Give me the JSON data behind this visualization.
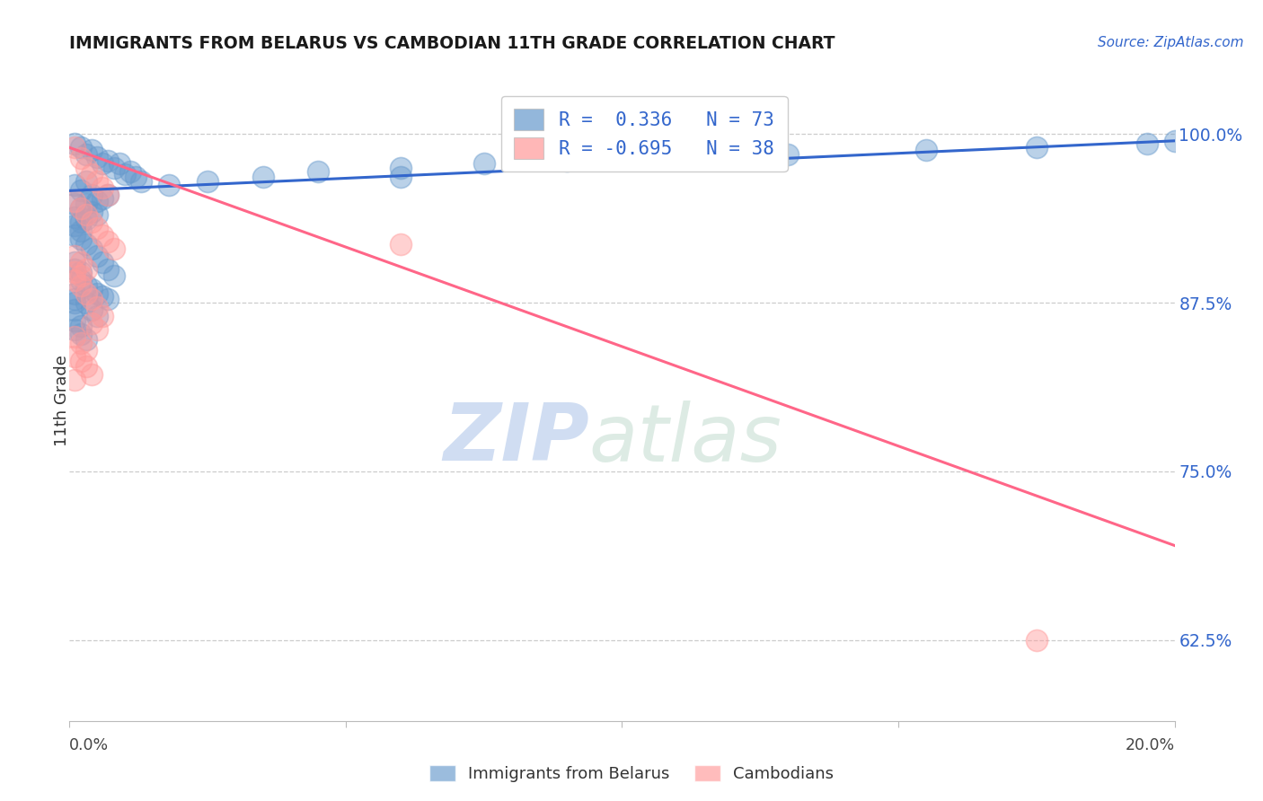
{
  "title": "IMMIGRANTS FROM BELARUS VS CAMBODIAN 11TH GRADE CORRELATION CHART",
  "source": "Source: ZipAtlas.com",
  "ylabel": "11th Grade",
  "ytick_labels": [
    "100.0%",
    "87.5%",
    "75.0%",
    "62.5%"
  ],
  "ytick_values": [
    1.0,
    0.875,
    0.75,
    0.625
  ],
  "xmin": 0.0,
  "xmax": 0.2,
  "ymin": 0.565,
  "ymax": 1.04,
  "blue_R": 0.336,
  "blue_N": 73,
  "pink_R": -0.695,
  "pink_N": 38,
  "blue_color": "#6699CC",
  "pink_color": "#FF9999",
  "blue_line_color": "#3366CC",
  "pink_line_color": "#FF6688",
  "watermark_zip": "ZIP",
  "watermark_atlas": "atlas",
  "legend_label_blue": "Immigrants from Belarus",
  "legend_label_pink": "Cambodians",
  "blue_scatter": [
    [
      0.001,
      0.993
    ],
    [
      0.002,
      0.99
    ],
    [
      0.003,
      0.985
    ],
    [
      0.004,
      0.988
    ],
    [
      0.005,
      0.983
    ],
    [
      0.006,
      0.978
    ],
    [
      0.007,
      0.98
    ],
    [
      0.008,
      0.975
    ],
    [
      0.009,
      0.978
    ],
    [
      0.01,
      0.97
    ],
    [
      0.011,
      0.972
    ],
    [
      0.012,
      0.968
    ],
    [
      0.013,
      0.965
    ],
    [
      0.001,
      0.962
    ],
    [
      0.002,
      0.958
    ],
    [
      0.003,
      0.965
    ],
    [
      0.004,
      0.955
    ],
    [
      0.005,
      0.95
    ],
    [
      0.006,
      0.952
    ],
    [
      0.007,
      0.955
    ],
    [
      0.001,
      0.948
    ],
    [
      0.002,
      0.945
    ],
    [
      0.003,
      0.948
    ],
    [
      0.004,
      0.942
    ],
    [
      0.005,
      0.94
    ],
    [
      0.001,
      0.938
    ],
    [
      0.002,
      0.935
    ],
    [
      0.003,
      0.937
    ],
    [
      0.001,
      0.932
    ],
    [
      0.002,
      0.928
    ],
    [
      0.001,
      0.925
    ],
    [
      0.002,
      0.922
    ],
    [
      0.003,
      0.918
    ],
    [
      0.004,
      0.915
    ],
    [
      0.005,
      0.91
    ],
    [
      0.006,
      0.905
    ],
    [
      0.007,
      0.9
    ],
    [
      0.008,
      0.895
    ],
    [
      0.001,
      0.905
    ],
    [
      0.001,
      0.9
    ],
    [
      0.002,
      0.898
    ],
    [
      0.002,
      0.892
    ],
    [
      0.003,
      0.888
    ],
    [
      0.004,
      0.885
    ],
    [
      0.005,
      0.882
    ],
    [
      0.006,
      0.88
    ],
    [
      0.007,
      0.878
    ],
    [
      0.003,
      0.875
    ],
    [
      0.004,
      0.87
    ],
    [
      0.005,
      0.865
    ],
    [
      0.001,
      0.862
    ],
    [
      0.002,
      0.858
    ],
    [
      0.001,
      0.855
    ],
    [
      0.002,
      0.852
    ],
    [
      0.003,
      0.848
    ],
    [
      0.018,
      0.962
    ],
    [
      0.025,
      0.965
    ],
    [
      0.035,
      0.968
    ],
    [
      0.045,
      0.972
    ],
    [
      0.06,
      0.975
    ],
    [
      0.075,
      0.978
    ],
    [
      0.09,
      0.98
    ],
    [
      0.11,
      0.982
    ],
    [
      0.13,
      0.985
    ],
    [
      0.155,
      0.988
    ],
    [
      0.175,
      0.99
    ],
    [
      0.195,
      0.993
    ],
    [
      0.001,
      0.882
    ],
    [
      0.001,
      0.878
    ],
    [
      0.001,
      0.875
    ],
    [
      0.06,
      0.968
    ],
    [
      0.2,
      0.995
    ],
    [
      0.001,
      0.87
    ]
  ],
  "pink_scatter": [
    [
      0.001,
      0.99
    ],
    [
      0.002,
      0.982
    ],
    [
      0.003,
      0.975
    ],
    [
      0.004,
      0.97
    ],
    [
      0.005,
      0.965
    ],
    [
      0.006,
      0.96
    ],
    [
      0.007,
      0.955
    ],
    [
      0.001,
      0.95
    ],
    [
      0.002,
      0.945
    ],
    [
      0.003,
      0.94
    ],
    [
      0.004,
      0.935
    ],
    [
      0.005,
      0.93
    ],
    [
      0.006,
      0.925
    ],
    [
      0.007,
      0.92
    ],
    [
      0.008,
      0.915
    ],
    [
      0.001,
      0.91
    ],
    [
      0.002,
      0.905
    ],
    [
      0.003,
      0.9
    ],
    [
      0.001,
      0.898
    ],
    [
      0.002,
      0.895
    ],
    [
      0.001,
      0.892
    ],
    [
      0.002,
      0.888
    ],
    [
      0.003,
      0.882
    ],
    [
      0.004,
      0.878
    ],
    [
      0.005,
      0.872
    ],
    [
      0.006,
      0.865
    ],
    [
      0.004,
      0.86
    ],
    [
      0.005,
      0.855
    ],
    [
      0.001,
      0.85
    ],
    [
      0.002,
      0.845
    ],
    [
      0.003,
      0.84
    ],
    [
      0.001,
      0.835
    ],
    [
      0.06,
      0.918
    ],
    [
      0.002,
      0.832
    ],
    [
      0.003,
      0.828
    ],
    [
      0.004,
      0.822
    ],
    [
      0.175,
      0.625
    ],
    [
      0.001,
      0.818
    ]
  ],
  "blue_trend_x": [
    0.0,
    0.2
  ],
  "blue_trend_y": [
    0.958,
    0.995
  ],
  "pink_trend_x": [
    0.0,
    0.2
  ],
  "pink_trend_y": [
    0.99,
    0.695
  ]
}
